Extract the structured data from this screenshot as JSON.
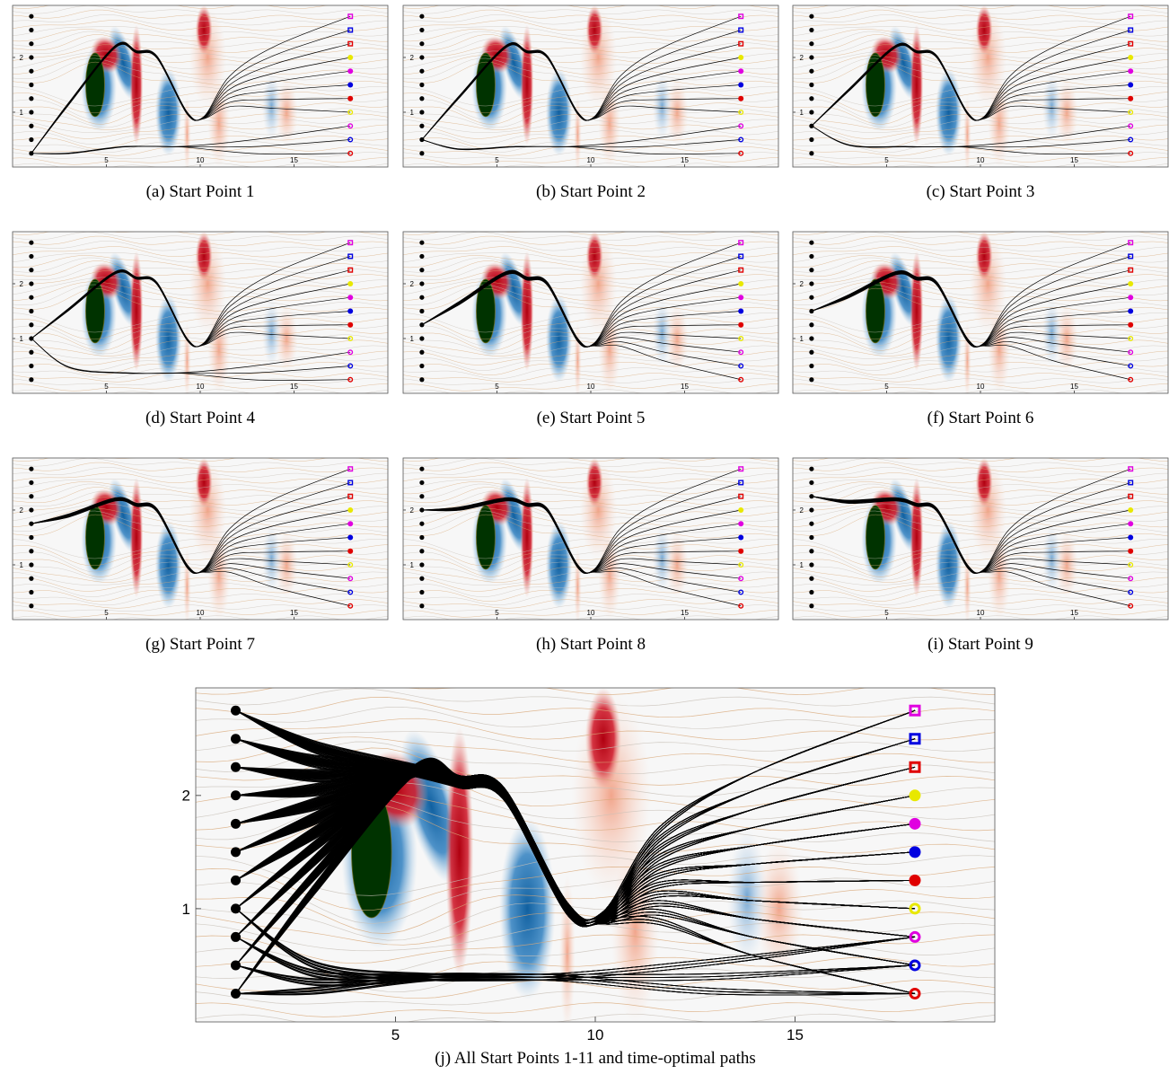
{
  "panels": [
    {
      "caption": "(a) Start Point 1"
    },
    {
      "caption": "(b) Start Point 2"
    },
    {
      "caption": "(c) Start Point 3"
    },
    {
      "caption": "(d) Start Point 4"
    },
    {
      "caption": "(e) Start Point 5"
    },
    {
      "caption": "(f) Start Point 6"
    },
    {
      "caption": "(g) Start Point 7"
    },
    {
      "caption": "(h) Start Point 8"
    },
    {
      "caption": "(i) Start Point 9"
    }
  ],
  "main": {
    "caption": "(j) All Start Points 1-11 and time-optimal paths"
  },
  "axes": {
    "xlim": [
      0,
      20
    ],
    "ylim": [
      0,
      2.95
    ],
    "xticks": [
      5,
      10,
      15
    ],
    "yticks": [
      1,
      2
    ]
  },
  "start_x": 1,
  "start_y": [
    0.25,
    0.5,
    0.75,
    1,
    1.25,
    1.5,
    1.75,
    2,
    2.25,
    2.5,
    2.75
  ],
  "targets": {
    "x": 18,
    "markers": [
      {
        "y": 0.25,
        "color": "#e00000",
        "shape": "ring"
      },
      {
        "y": 0.5,
        "color": "#0000e0",
        "shape": "ring"
      },
      {
        "y": 0.75,
        "color": "#e000e0",
        "shape": "ring"
      },
      {
        "y": 1,
        "color": "#e8e800",
        "shape": "ring"
      },
      {
        "y": 1.25,
        "color": "#e00000",
        "shape": "dot"
      },
      {
        "y": 1.5,
        "color": "#0000e0",
        "shape": "dot"
      },
      {
        "y": 1.75,
        "color": "#e000e0",
        "shape": "dot"
      },
      {
        "y": 2,
        "color": "#e8e800",
        "shape": "dot"
      },
      {
        "y": 2.25,
        "color": "#e00000",
        "shape": "square"
      },
      {
        "y": 2.5,
        "color": "#0000e0",
        "shape": "square"
      },
      {
        "y": 2.75,
        "color": "#e000e0",
        "shape": "square"
      }
    ]
  }
}
